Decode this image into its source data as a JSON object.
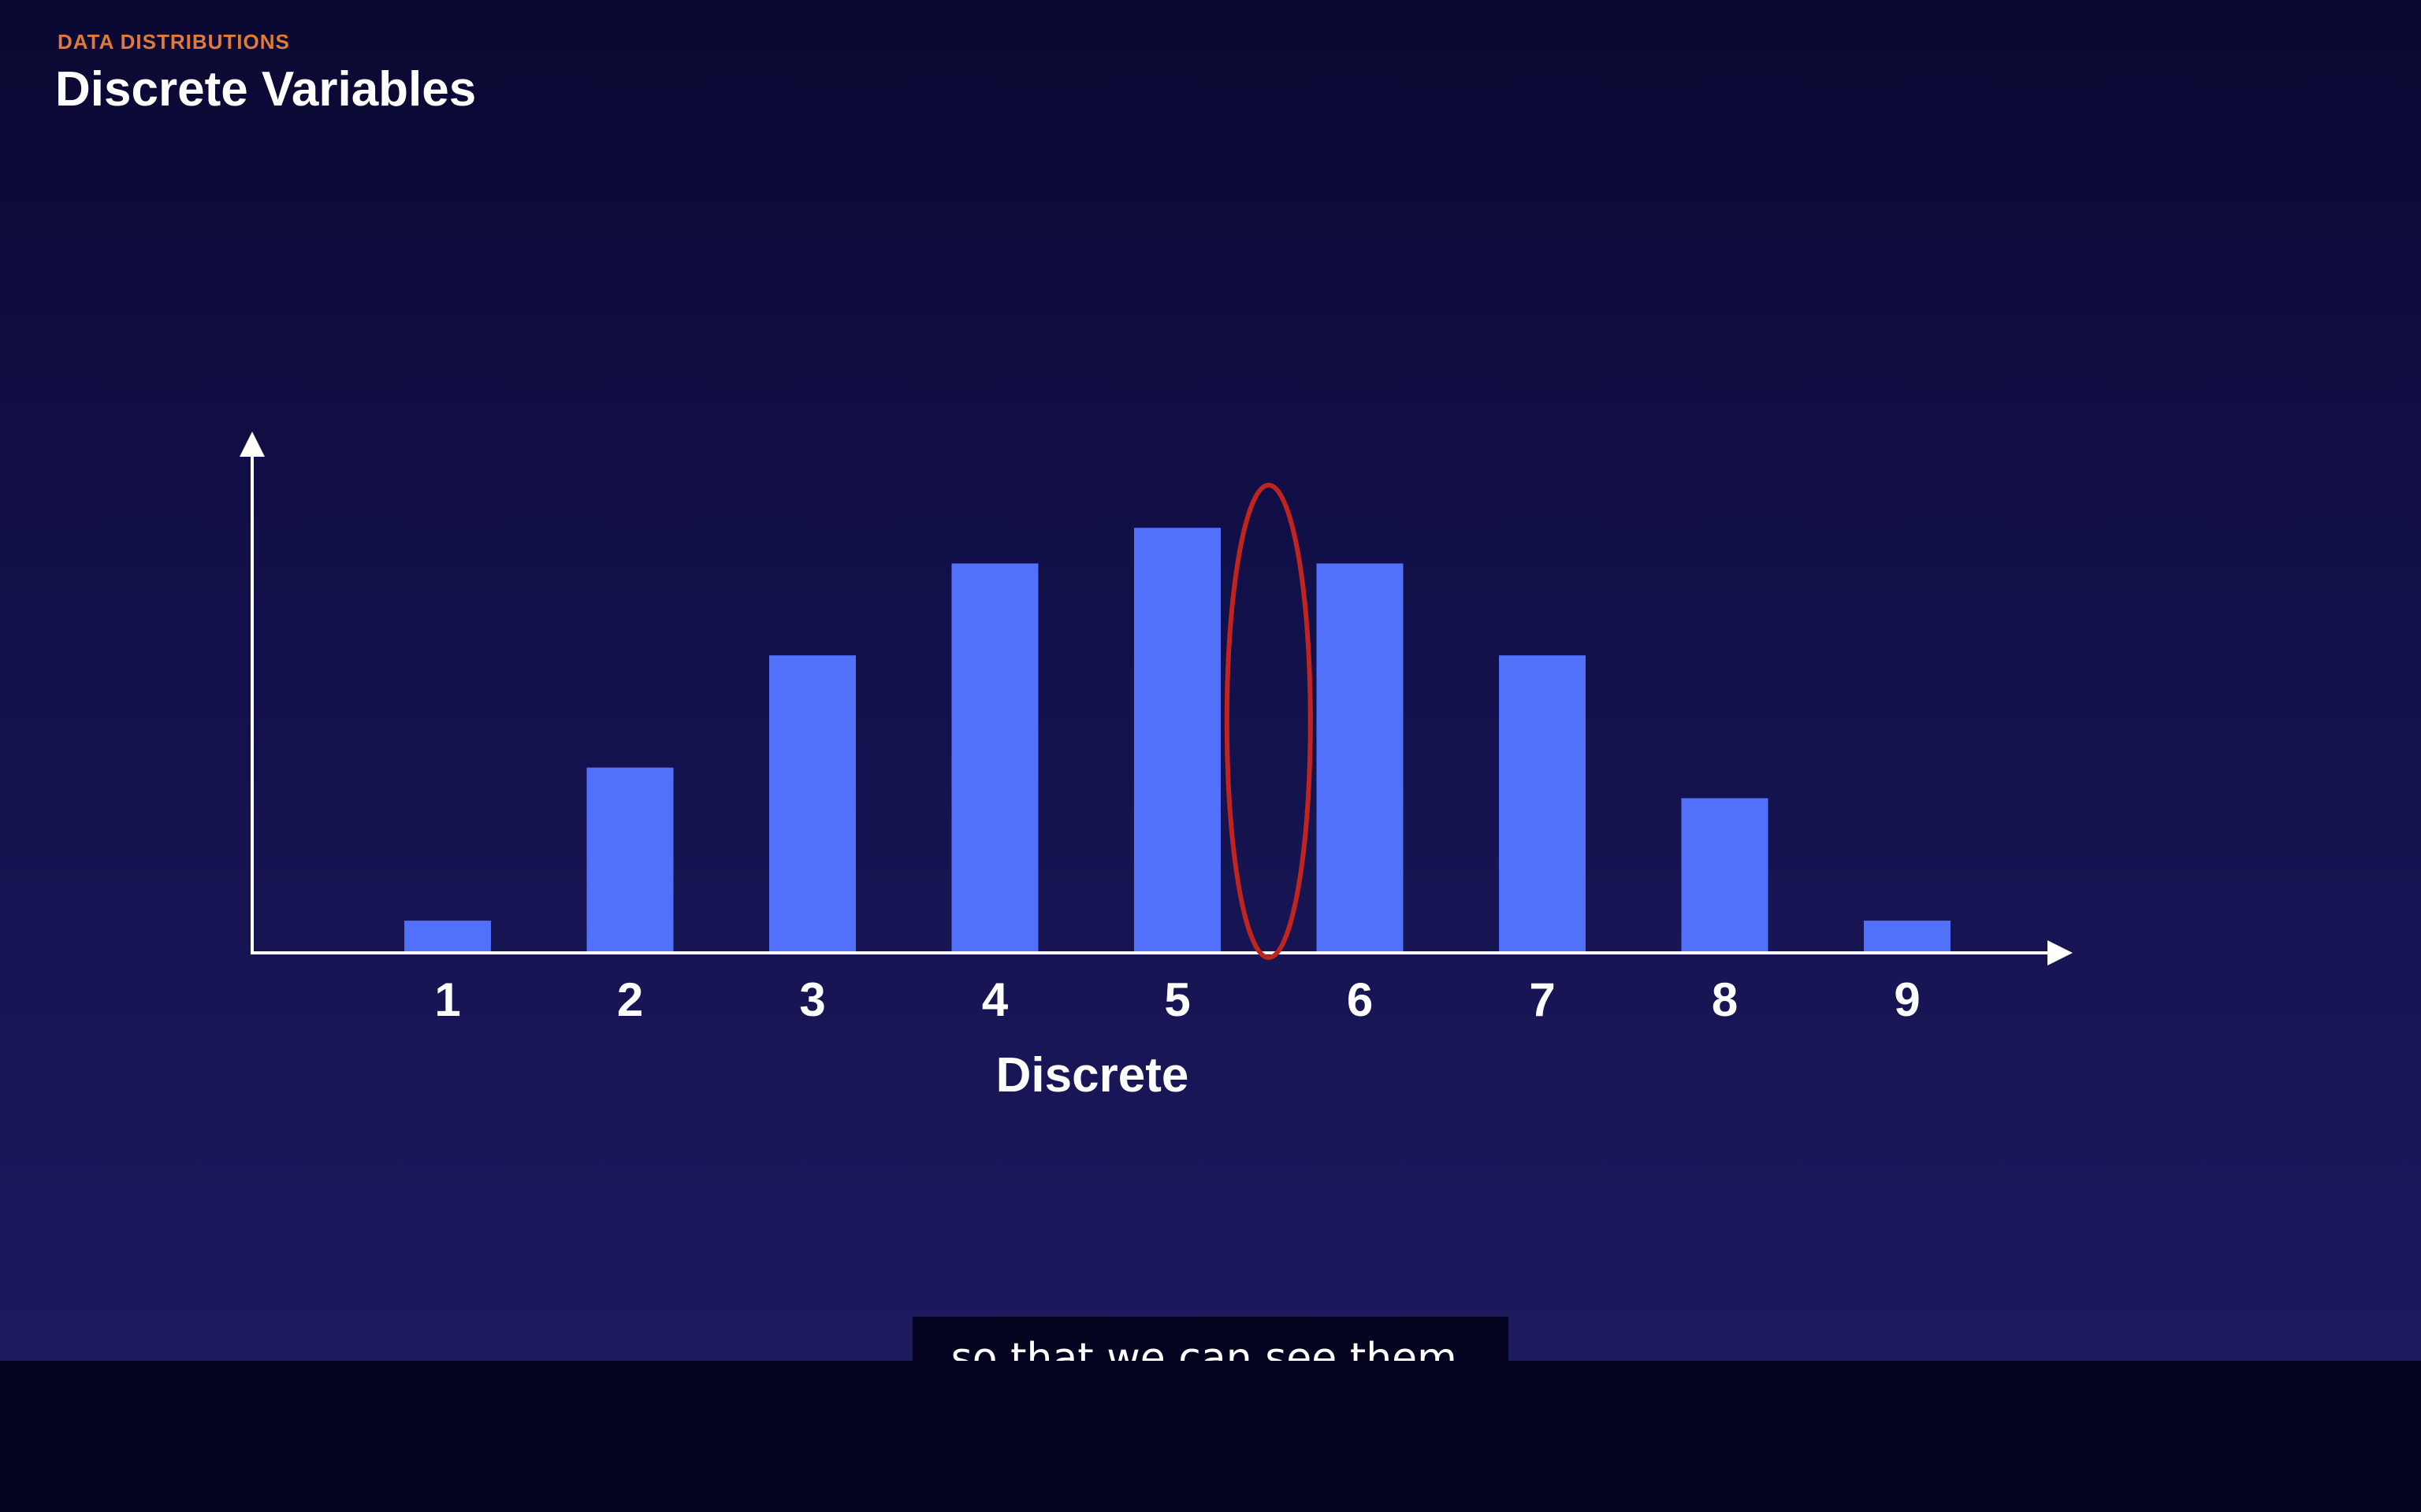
{
  "slide": {
    "eyebrow": "DATA DISTRIBUTIONS",
    "title": "Discrete Variables"
  },
  "chart_data": {
    "type": "bar",
    "categories": [
      "1",
      "2",
      "3",
      "4",
      "5",
      "6",
      "7",
      "8",
      "9"
    ],
    "values": [
      0.06,
      0.36,
      0.58,
      0.76,
      0.83,
      0.76,
      0.58,
      0.3,
      0.06
    ],
    "xlabel": "Discrete",
    "ylabel": "",
    "ylim": [
      0,
      1
    ],
    "grid": false,
    "bar_color": "#5271fb",
    "axis_color": "#ffffff",
    "annotation": {
      "type": "ellipse",
      "between": [
        "5",
        "6"
      ],
      "color": "#c0241f"
    }
  },
  "caption": {
    "text": "so that we can see them."
  },
  "colors": {
    "background_top": "#0b0832",
    "background_bottom": "#1c1a5e",
    "eyebrow": "#e07a3a",
    "bar": "#5271fb",
    "annotation": "#c0241f"
  }
}
